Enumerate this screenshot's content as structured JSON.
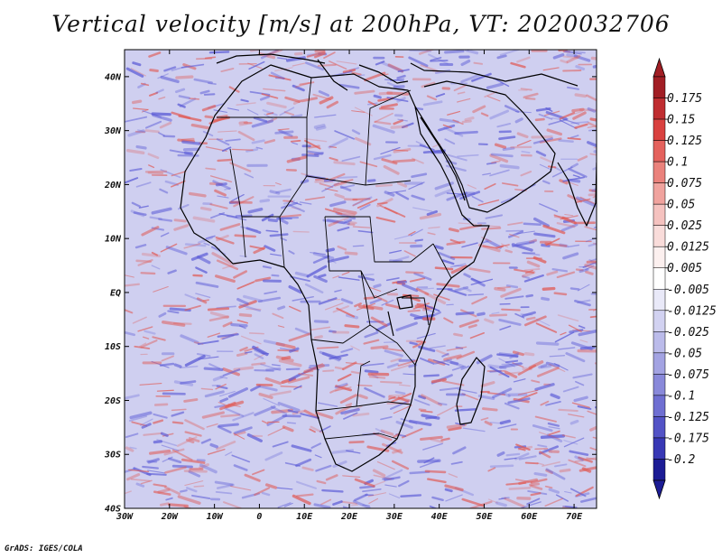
{
  "title": "Vertical velocity [m/s] at 200hPa, VT: 2020032706",
  "credit": "GrADS: IGES/COLA",
  "map": {
    "lon_range": [
      -30,
      75
    ],
    "lat_range": [
      -40,
      45
    ],
    "lon_ticks": [
      {
        "value": -30,
        "label": "30W"
      },
      {
        "value": -20,
        "label": "20W"
      },
      {
        "value": -10,
        "label": "10W"
      },
      {
        "value": 0,
        "label": "0"
      },
      {
        "value": 10,
        "label": "10E"
      },
      {
        "value": 20,
        "label": "20E"
      },
      {
        "value": 30,
        "label": "30E"
      },
      {
        "value": 40,
        "label": "40E"
      },
      {
        "value": 50,
        "label": "50E"
      },
      {
        "value": 60,
        "label": "60E"
      },
      {
        "value": 70,
        "label": "70E"
      }
    ],
    "lat_ticks": [
      {
        "value": 40,
        "label": "40N"
      },
      {
        "value": 30,
        "label": "30N"
      },
      {
        "value": 20,
        "label": "20N"
      },
      {
        "value": 10,
        "label": "10N"
      },
      {
        "value": 0,
        "label": "EQ"
      },
      {
        "value": -10,
        "label": "10S"
      },
      {
        "value": -20,
        "label": "20S"
      },
      {
        "value": -30,
        "label": "30S"
      },
      {
        "value": -40,
        "label": "40S"
      }
    ]
  },
  "colorbar": {
    "labels": [
      "0.175",
      "0.15",
      "0.125",
      "0.1",
      "0.075",
      "0.05",
      "0.025",
      "0.0125",
      "0.005",
      "-0.005",
      "-0.0125",
      "-0.025",
      "-0.05",
      "-0.075",
      "-0.1",
      "-0.125",
      "-0.175",
      "-0.2"
    ],
    "colors": [
      "#a11e24",
      "#bf2d30",
      "#d9413f",
      "#e4625d",
      "#ea827c",
      "#f0a39e",
      "#f5c2bf",
      "#f9dcda",
      "#fcf0ef",
      "#ffffff",
      "#e9e9f8",
      "#d2d2f1",
      "#bbbbea",
      "#a3a3e2",
      "#8989da",
      "#6f6fd2",
      "#5353c6",
      "#3838b5",
      "#1c1c95"
    ],
    "top_color": "#a11e24",
    "bottom_color": "#1c1c95"
  },
  "style": {
    "coast_color": "#000000",
    "positive_color": "#e05a55",
    "negative_color": "#5a5ad6",
    "background_tint": "#c8c8ec"
  }
}
